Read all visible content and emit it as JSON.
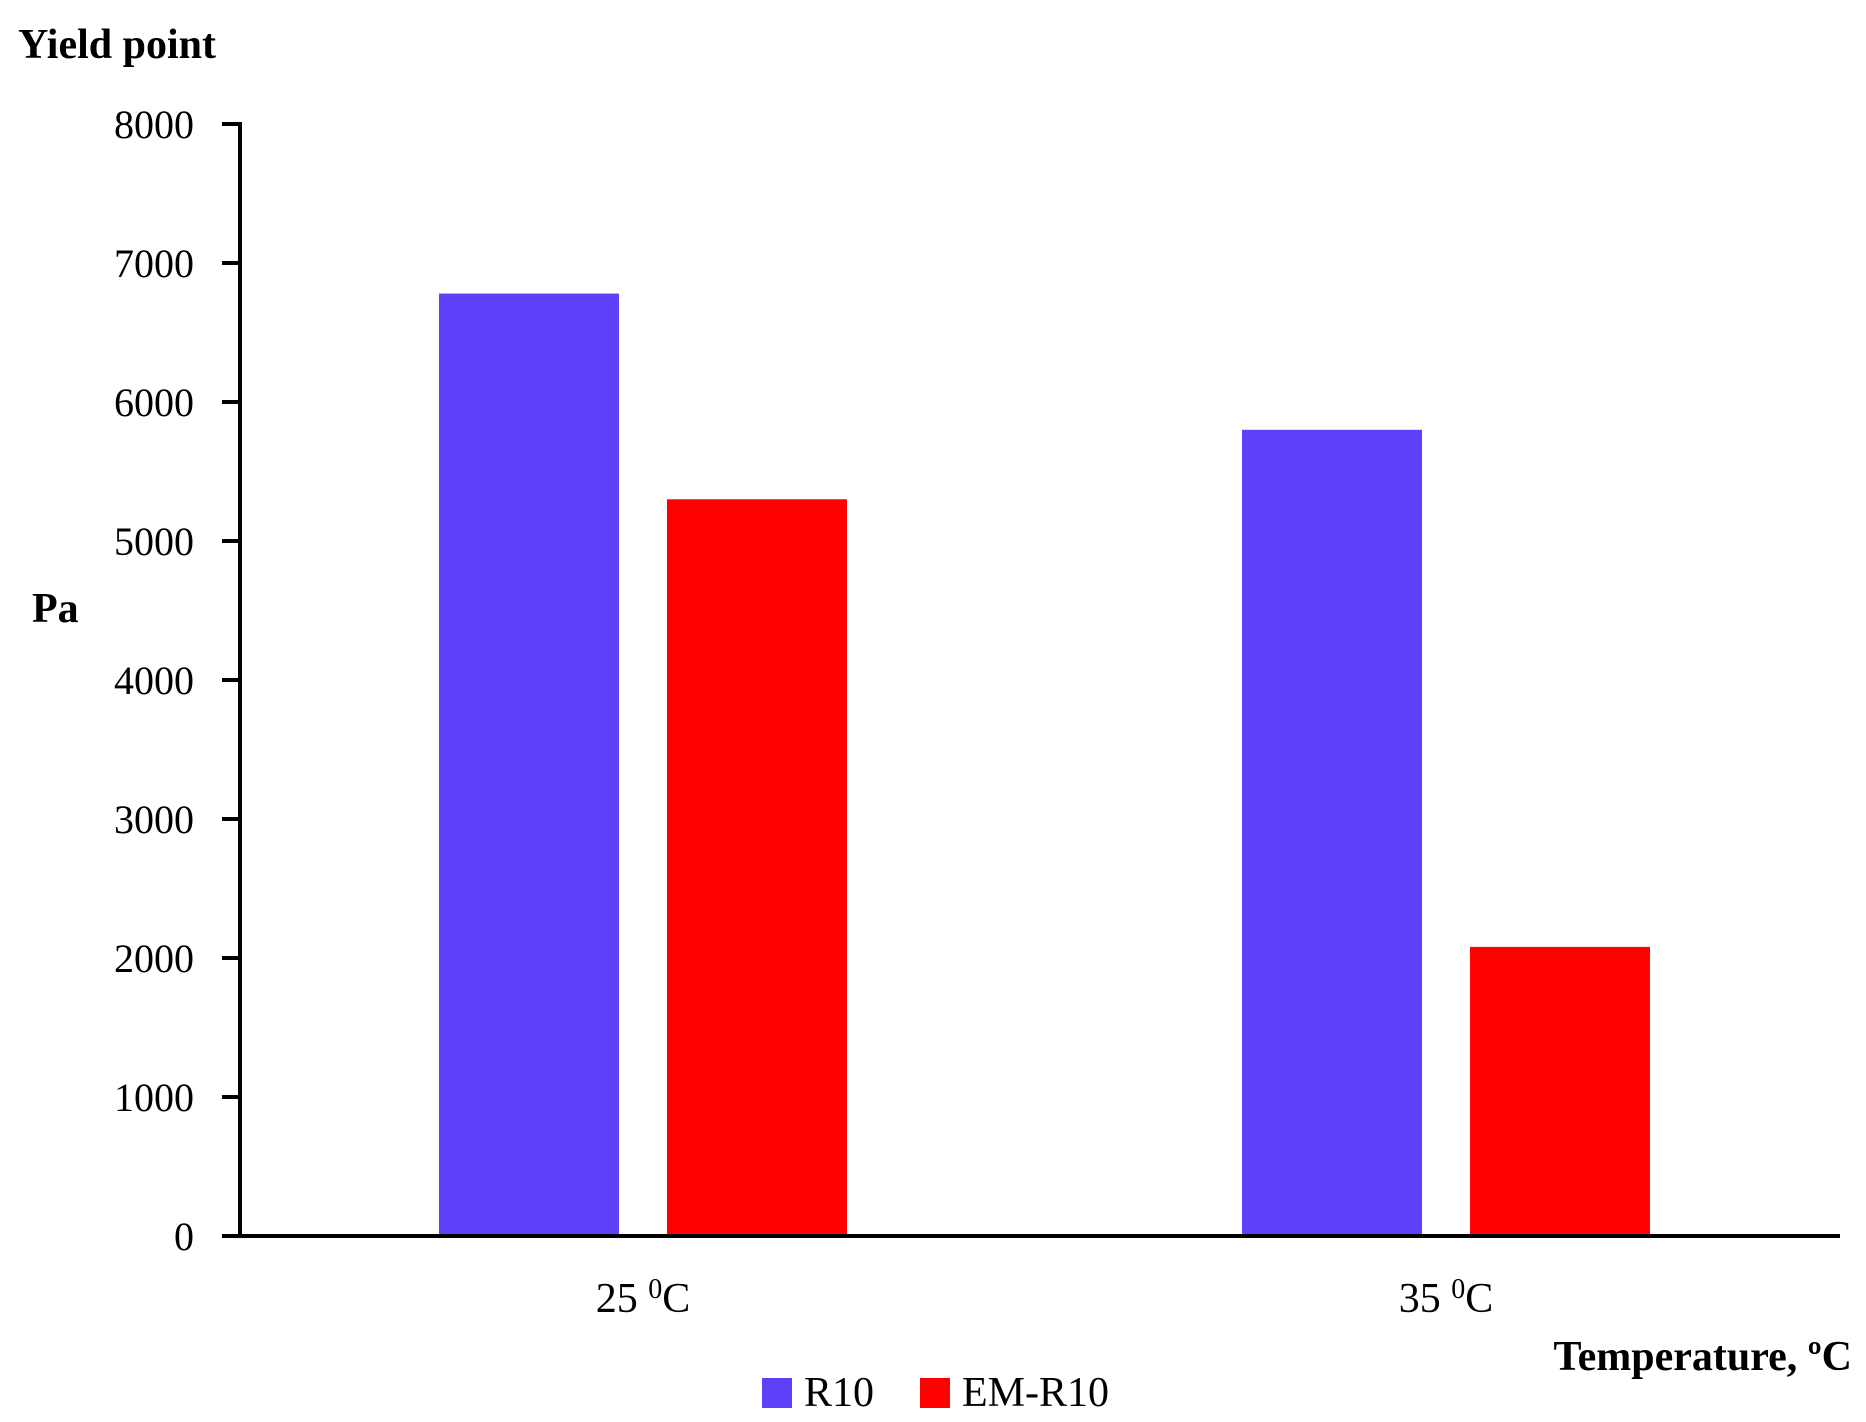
{
  "chart_data": {
    "type": "bar",
    "title": "",
    "ylabel_top": "Yield point",
    "ylabel": "Pa",
    "xlabel": "Temperature, ºC",
    "categories": [
      {
        "base": "25 ",
        "sup": "0",
        "tail": "C"
      },
      {
        "base": "35 ",
        "sup": "0",
        "tail": "C"
      }
    ],
    "series": [
      {
        "name": "R10",
        "color": "#6040F8",
        "values": [
          6780,
          5800
        ]
      },
      {
        "name": "EM-R10",
        "color": "#FF0000",
        "values": [
          5300,
          2080
        ]
      }
    ],
    "ylim": [
      0,
      8000
    ],
    "yticks": [
      "0",
      "1000",
      "2000",
      "3000",
      "4000",
      "5000",
      "6000",
      "7000",
      "8000"
    ],
    "grid": false,
    "legend_position": "bottom"
  }
}
